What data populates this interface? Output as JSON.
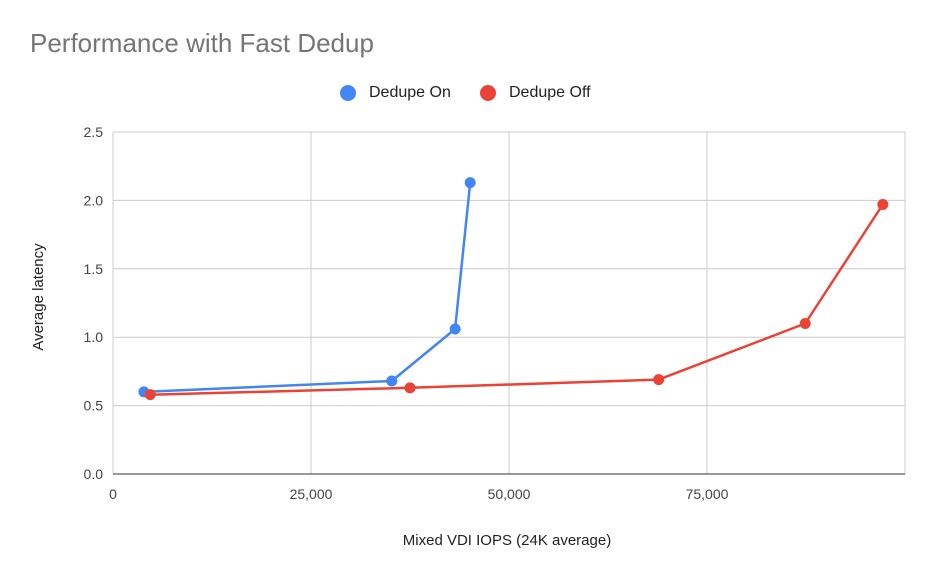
{
  "chart_data": {
    "type": "line",
    "title": "Performance with Fast Dedup",
    "xlabel": "Mixed VDI IOPS (24K average)",
    "ylabel": "Average latency",
    "xlim": [
      0,
      100000
    ],
    "ylim": [
      0,
      2.5
    ],
    "x_ticks": [
      0,
      25000,
      50000,
      75000
    ],
    "x_tick_labels": [
      "0",
      "25,000",
      "50,000",
      "75,000"
    ],
    "y_ticks": [
      0,
      0.5,
      1.0,
      1.5,
      2.0,
      2.5
    ],
    "y_tick_labels": [
      "0.0",
      "0.5",
      "1.0",
      "1.5",
      "2.0",
      "2.5"
    ],
    "grid": true,
    "legend": "top",
    "series": [
      {
        "name": "Dedupe On",
        "color": "#4285f4",
        "x": [
          3900,
          35200,
          43200,
          45100
        ],
        "y": [
          0.6,
          0.68,
          1.06,
          2.13
        ]
      },
      {
        "name": "Dedupe Off",
        "color": "#ea4335",
        "x": [
          4700,
          37500,
          68900,
          87400,
          97200
        ],
        "y": [
          0.58,
          0.63,
          0.69,
          1.1,
          1.97
        ]
      }
    ]
  }
}
